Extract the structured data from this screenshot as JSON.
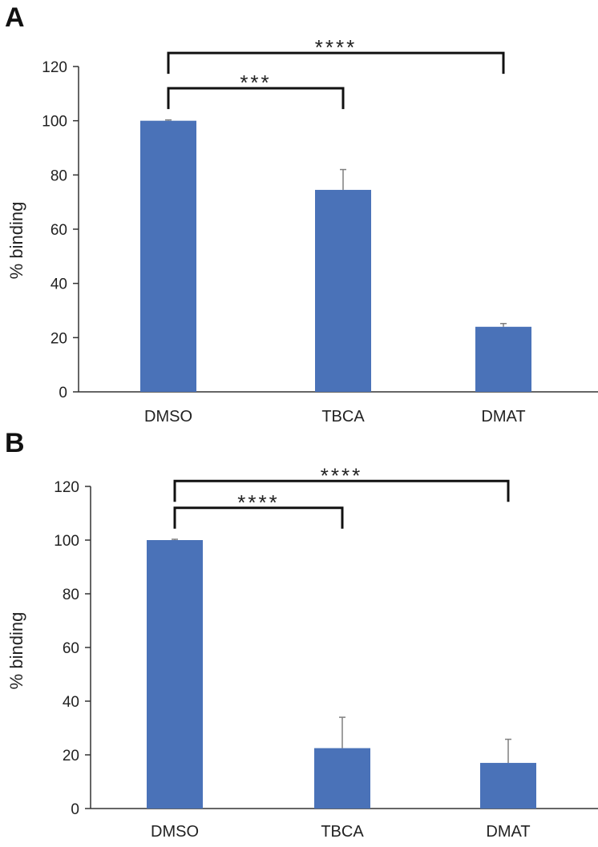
{
  "chart_data": [
    {
      "panel": "A",
      "type": "bar",
      "title": "",
      "xlabel": "",
      "ylabel": "% binding",
      "ylim": [
        0,
        120
      ],
      "yticks": [
        0,
        20,
        40,
        60,
        80,
        100,
        120
      ],
      "categories": [
        "DMSO",
        "TBCA",
        "DMAT"
      ],
      "values": [
        100,
        74.5,
        24
      ],
      "errors": [
        0.3,
        7.5,
        1.2
      ],
      "bar_color": "#4a72b8",
      "significance": [
        {
          "from": 0,
          "to": 1,
          "label": "***",
          "at": 112
        },
        {
          "from": 0,
          "to": 2,
          "label": "****",
          "at": 125
        }
      ]
    },
    {
      "panel": "B",
      "type": "bar",
      "title": "",
      "xlabel": "",
      "ylabel": "% binding",
      "ylim": [
        0,
        120
      ],
      "yticks": [
        0,
        20,
        40,
        60,
        80,
        100,
        120
      ],
      "categories": [
        "DMSO",
        "TBCA",
        "DMAT"
      ],
      "values": [
        100,
        22.5,
        17
      ],
      "errors": [
        0.3,
        11.5,
        8.8
      ],
      "bar_color": "#4a72b8",
      "significance": [
        {
          "from": 0,
          "to": 1,
          "label": "****",
          "at": 112
        },
        {
          "from": 0,
          "to": 2,
          "label": "****",
          "at": 122
        }
      ]
    }
  ]
}
